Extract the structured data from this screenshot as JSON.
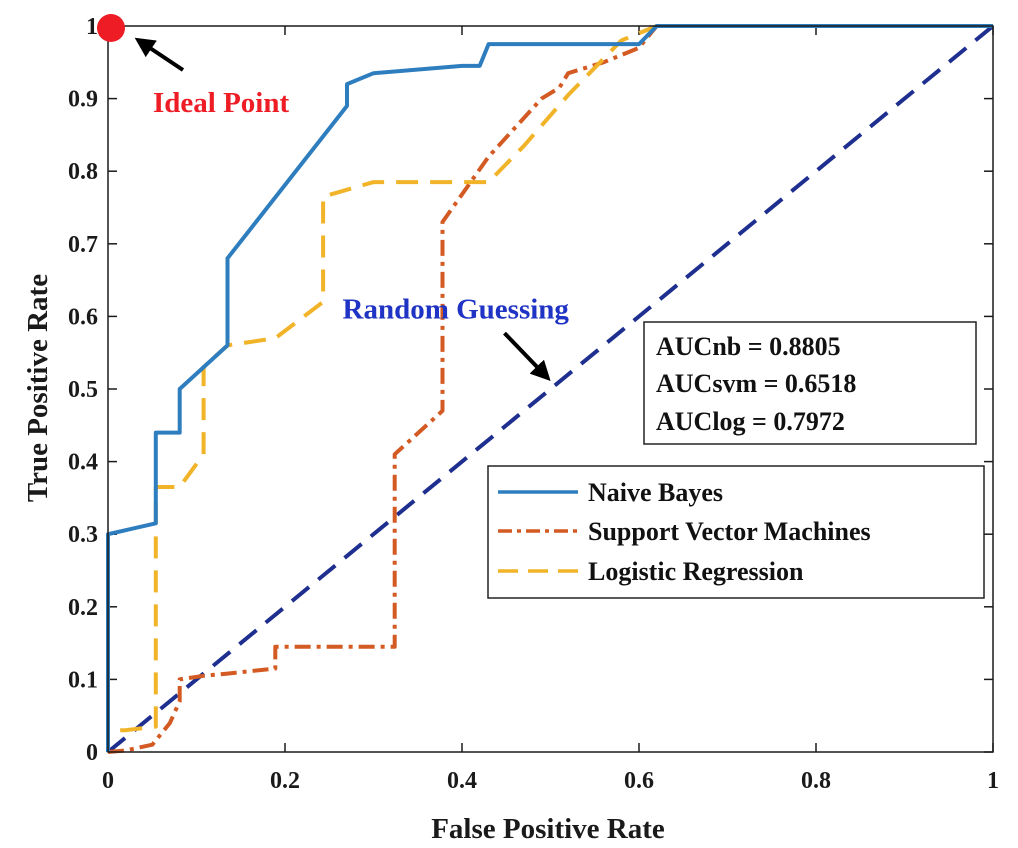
{
  "chart_data": {
    "type": "line",
    "title": "",
    "xlabel": "False Positive Rate",
    "ylabel": "True Positive Rate",
    "xlim": [
      0,
      1
    ],
    "ylim": [
      0,
      1
    ],
    "x_ticks": [
      "0",
      "0.2",
      "0.4",
      "0.6",
      "0.8",
      "1"
    ],
    "y_ticks": [
      "0",
      "0.1",
      "0.2",
      "0.3",
      "0.4",
      "0.5",
      "0.6",
      "0.7",
      "0.8",
      "0.9",
      "1"
    ],
    "x_tick_values": [
      0,
      0.2,
      0.4,
      0.6,
      0.8,
      1
    ],
    "y_tick_values": [
      0,
      0.1,
      0.2,
      0.3,
      0.4,
      0.5,
      0.6,
      0.7,
      0.8,
      0.9,
      1
    ],
    "grid": false,
    "legend_position": "lower-right",
    "series": [
      {
        "name": "Naive Bayes",
        "color": "#2e7ebf",
        "style": "solid",
        "x": [
          0,
          0,
          0.054,
          0.054,
          0.081,
          0.081,
          0.135,
          0.135,
          0.27,
          0.27,
          0.3,
          0.4,
          0.42,
          0.43,
          0.6,
          0.62,
          1
        ],
        "y": [
          0,
          0.3,
          0.315,
          0.44,
          0.44,
          0.5,
          0.56,
          0.68,
          0.89,
          0.92,
          0.935,
          0.945,
          0.945,
          0.975,
          0.975,
          1,
          1
        ]
      },
      {
        "name": "Support Vector Machines",
        "color": "#d35a22",
        "style": "dash-dot",
        "x": [
          0,
          0.02,
          0.05,
          0.07,
          0.081,
          0.081,
          0.108,
          0.135,
          0.189,
          0.189,
          0.324,
          0.324,
          0.378,
          0.378,
          0.43,
          0.49,
          0.51,
          0.52,
          0.56,
          0.6,
          0.62,
          1
        ],
        "y": [
          0,
          0.002,
          0.01,
          0.04,
          0.07,
          0.1,
          0.105,
          0.108,
          0.115,
          0.145,
          0.145,
          0.41,
          0.47,
          0.73,
          0.82,
          0.9,
          0.915,
          0.935,
          0.95,
          0.97,
          1,
          1
        ]
      },
      {
        "name": "Logistic Regression",
        "color": "#f1b428",
        "style": "dashed",
        "x": [
          0,
          0,
          0.02,
          0.054,
          0.054,
          0.081,
          0.108,
          0.108,
          0.135,
          0.189,
          0.243,
          0.243,
          0.3,
          0.43,
          0.47,
          0.52,
          0.58,
          0.62,
          1
        ],
        "y": [
          0,
          0.03,
          0.03,
          0.035,
          0.365,
          0.365,
          0.41,
          0.53,
          0.56,
          0.57,
          0.62,
          0.765,
          0.785,
          0.785,
          0.835,
          0.905,
          0.98,
          1,
          1
        ]
      },
      {
        "name": "Random Guessing",
        "color": "#1f2f8f",
        "style": "dashed",
        "x": [
          0,
          1
        ],
        "y": [
          0,
          1
        ],
        "in_legend": false
      }
    ],
    "ideal_point": {
      "x": 0,
      "y": 1,
      "color": "#ee1c24"
    },
    "annotations": {
      "ideal_point_label": "Ideal Point",
      "ideal_point_color": "#ee1c24",
      "random_label": "Random Guessing",
      "random_color": "#1f33c4"
    },
    "auc_box": [
      "AUCnb = 0.8805",
      "AUCsvm = 0.6518",
      "AUClog = 0.7972"
    ]
  }
}
